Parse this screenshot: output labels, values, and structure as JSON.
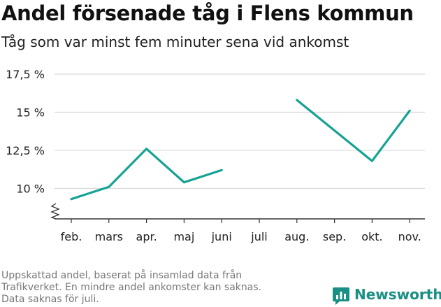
{
  "title": "Andel försenade tåg i Flens kommun",
  "subtitle": "Tåg som var minst fem minuter sena vid ankomst",
  "footer": {
    "lines": [
      "Uppskattad andel, baserat på insamlad data från",
      "Trafikverket. En mindre andel ankomster kan saknas.",
      "Data saknas för juli."
    ]
  },
  "brand": {
    "name": "Newsworthy",
    "icon": "newsworthy-logo-icon",
    "color": "#1a8f83"
  },
  "colors": {
    "line": "#16a394",
    "grid": "#d9d9d9",
    "axis": "#333333"
  },
  "chart_data": {
    "type": "line",
    "title": "Andel försenade tåg i Flens kommun",
    "subtitle": "Tåg som var minst fem minuter sena vid ankomst",
    "xlabel": "",
    "ylabel": "",
    "categories": [
      "feb.",
      "mars",
      "apr.",
      "maj",
      "juni",
      "juli",
      "aug.",
      "sep.",
      "okt.",
      "nov."
    ],
    "series": [
      {
        "values": [
          9.3,
          10.1,
          12.6,
          10.4,
          11.2,
          null,
          15.8,
          13.8,
          11.8,
          15.1
        ]
      }
    ],
    "yticks": [
      10,
      12.5,
      15,
      17.5
    ],
    "ytick_labels": [
      "10 %",
      "12,5 %",
      "15 %",
      "17,5 %"
    ],
    "ylim": [
      8,
      17.5
    ],
    "axis_break": true,
    "grid": true,
    "legend": "none"
  }
}
